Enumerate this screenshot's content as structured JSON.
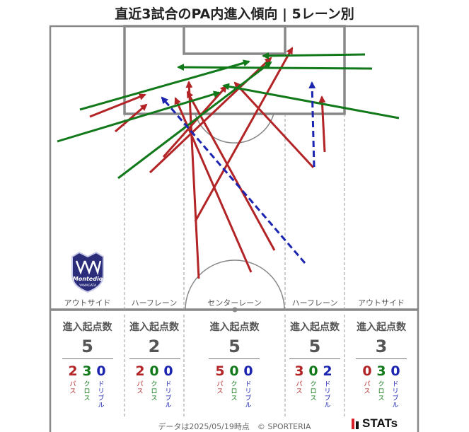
{
  "title": "直近3試合のPA内進入傾向 | 5レーン別",
  "lanes": [
    {
      "label": "アウトサイド",
      "stat_header": "進入起点数",
      "total": "5",
      "pass": "2",
      "cross": "3",
      "dribble": "0"
    },
    {
      "label": "ハーフレーン",
      "stat_header": "進入起点数",
      "total": "2",
      "pass": "2",
      "cross": "0",
      "dribble": "0"
    },
    {
      "label": "センターレーン",
      "stat_header": "進入起点数",
      "total": "5",
      "pass": "5",
      "cross": "0",
      "dribble": "0"
    },
    {
      "label": "ハーフレーン",
      "stat_header": "進入起点数",
      "total": "5",
      "pass": "3",
      "cross": "0",
      "dribble": "2"
    },
    {
      "label": "アウトサイド",
      "stat_header": "進入起点数",
      "total": "3",
      "pass": "0",
      "cross": "3",
      "dribble": "0"
    }
  ],
  "categories": {
    "pass": "パス",
    "cross": "クロス",
    "dribble": "ドリブル"
  },
  "colors": {
    "pass": "#b22426",
    "cross": "#11791a",
    "dribble": "#1c25b0",
    "pitch_line": "#888888"
  },
  "footer": "データは2025/05/19時点　© SPORTERIA",
  "brand": "STATs",
  "club_logo_text": "Montedio",
  "club_logo_subtext": "YAMAGATA"
}
